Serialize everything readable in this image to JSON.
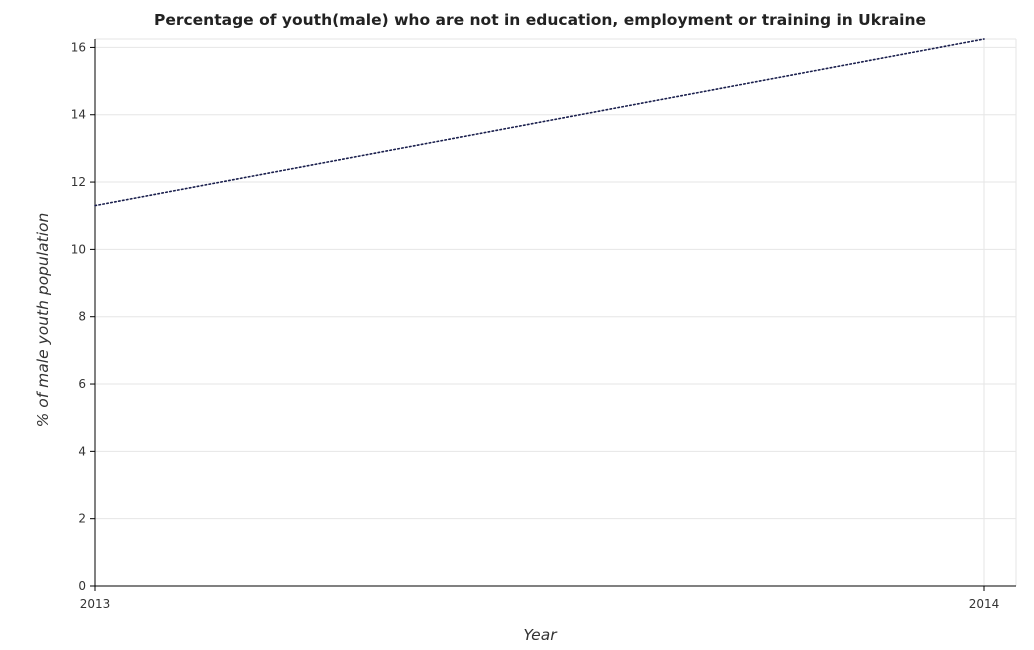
{
  "chart_data": {
    "type": "line",
    "title": "Percentage of youth(male) who are not in education, employment or training in Ukraine",
    "xlabel": "Year",
    "ylabel": "% of male youth population",
    "categories": [
      "2013",
      "2014"
    ],
    "series": [
      {
        "values": [
          11.3,
          16.25
        ],
        "color": "#1a1f4d"
      }
    ],
    "ylim": [
      0,
      16.25
    ],
    "yticks": [
      0,
      2,
      4,
      6,
      8,
      10,
      12,
      14,
      16
    ],
    "grid": true,
    "legend": "none"
  }
}
